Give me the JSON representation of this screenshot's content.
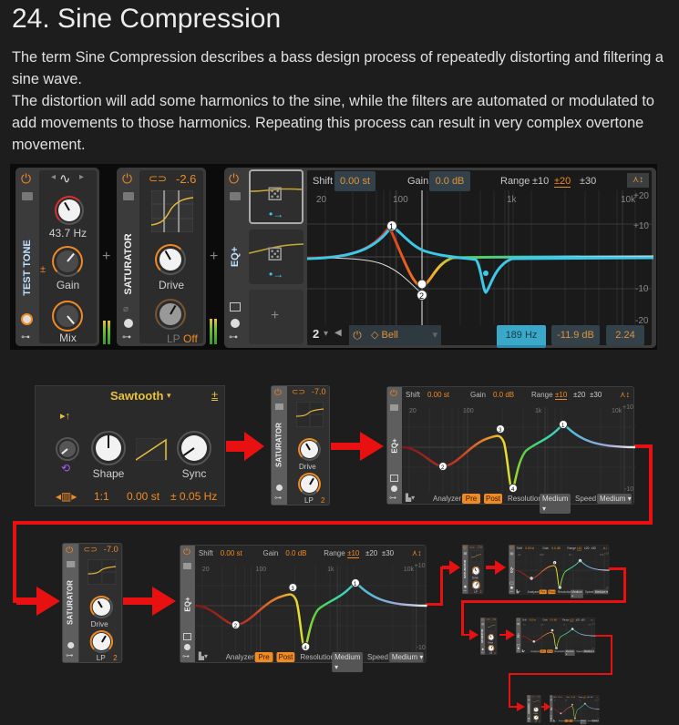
{
  "title": "24. Sine Compression",
  "paragraphs": [
    "The term Sine Compression describes a bass design process of repeatedly distorting and filtering a sine wave.",
    "The distortion will add some harmonics to the sine, while the filters are automated or modulated to add movements to those harmonics. Repeating this process can result in very complex overtone movement."
  ],
  "top_chain": {
    "test_tone": {
      "label": "TEST TONE",
      "frequency": "43.7 Hz",
      "gain_label": "Gain",
      "mix_label": "Mix"
    },
    "plus": "+",
    "saturator": {
      "label": "SATURATOR",
      "value": "-2.6",
      "drive_label": "Drive",
      "lp_label": "LP",
      "lp_value": "Off"
    },
    "eq": {
      "label": "EQ+",
      "shift_label": "Shift",
      "shift_value": "0.00 st",
      "gain_label": "Gain",
      "gain_value": "0.0 dB",
      "range_label": "Range",
      "ranges": [
        "±10",
        "±20",
        "±30"
      ],
      "active_range": "±20",
      "freq_ticks": [
        "20",
        "100",
        "1k",
        "10k"
      ],
      "db_ticks": [
        "+20",
        "+10",
        "-10",
        "-20"
      ],
      "band": "2",
      "filter_type": "Bell",
      "band_freq": "189 Hz",
      "band_gain": "-11.9 dB",
      "band_q": "2.24",
      "nodes": [
        "1",
        "2"
      ],
      "add_slot": "+"
    }
  },
  "chain": {
    "oscillator": {
      "waveform": "Sawtooth",
      "shape_label": "Shape",
      "sync_label": "Sync",
      "ratio": "1:1",
      "pitch": "0.00 st",
      "detune": "± 0.05 Hz"
    },
    "saturator": {
      "label": "SATURATOR",
      "value": "-7.0",
      "drive_label": "Drive",
      "lp_label": "LP",
      "lp_value": "2"
    },
    "eq": {
      "label": "EQ+",
      "shift_label": "Shift",
      "shift_value": "0.00 st",
      "gain_label": "Gain",
      "gain_value": "0.0 dB",
      "range_label": "Range",
      "ranges": [
        "±10",
        "±20",
        "±30"
      ],
      "active_range": "±10",
      "freq_ticks": [
        "20",
        "100",
        "1k",
        "10k"
      ],
      "db_ticks": [
        "+10",
        "-10"
      ],
      "analyzer_label": "Analyzer",
      "pre": "Pre",
      "post": "Post",
      "resolution_label": "Resolution",
      "resolution": "Medium",
      "speed_label": "Speed",
      "speed": "Medium",
      "nodes": [
        "1",
        "2",
        "3",
        "4"
      ]
    }
  },
  "colors": {
    "background": "#1d1d1d",
    "accent": "#f08a24",
    "arrow": "#e81010",
    "eq_band": "#3ec8e8"
  }
}
